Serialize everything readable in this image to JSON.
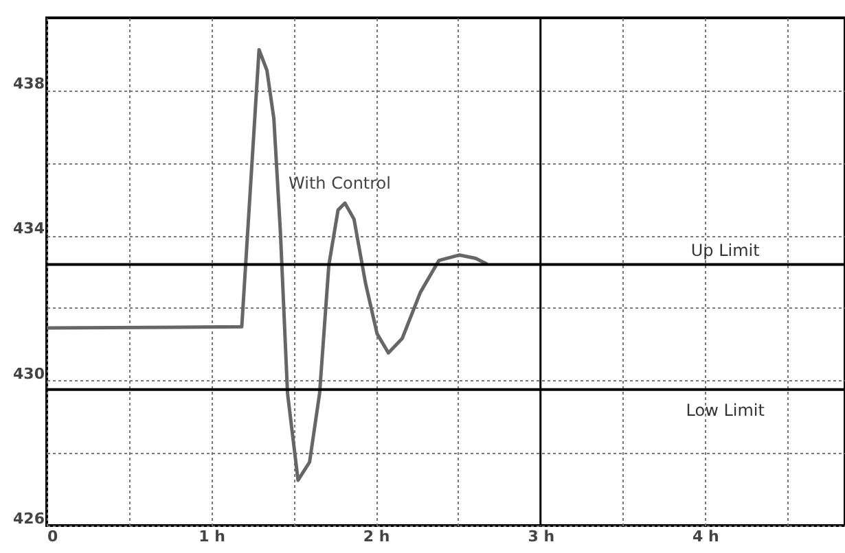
{
  "chart_data": {
    "type": "line",
    "x": [
      0,
      1.185,
      1.29,
      1.338,
      1.38,
      1.42,
      1.463,
      1.527,
      1.597,
      1.658,
      1.714,
      1.77,
      1.812,
      1.867,
      1.937,
      2.007,
      2.076,
      2.16,
      2.27,
      2.383,
      2.508,
      2.606,
      2.676
    ],
    "series": [
      {
        "color": "#666666",
        "values": [
          431.45,
          431.48,
          439.12,
          438.55,
          437.22,
          434.07,
          429.65,
          427.25,
          427.75,
          429.65,
          433.18,
          434.7,
          434.89,
          434.45,
          432.68,
          431.29,
          430.76,
          431.16,
          432.43,
          433.31,
          433.46,
          433.37,
          433.21
        ]
      }
    ],
    "xlim": [
      0,
      4.85
    ],
    "xticks": [
      0,
      {
        "value": 0.5,
        "label": null
      },
      {
        "value": 1,
        "label": "1 h"
      },
      {
        "value": 1.5,
        "label": null
      },
      {
        "value": 2,
        "label": "2 h"
      },
      {
        "value": 2.5,
        "label": null
      },
      {
        "value": 3,
        "label": "3 h"
      },
      {
        "value": 3.5,
        "label": null
      },
      {
        "value": 4,
        "label": "4 h"
      },
      {
        "value": 4.5,
        "label": null
      }
    ],
    "ylim": [
      426,
      440
    ],
    "yticks": [
      426,
      {
        "value": 428,
        "label": null
      },
      430,
      {
        "value": 432,
        "label": null
      },
      434,
      {
        "value": 436,
        "label": null
      },
      438
    ],
    "grid": true,
    "line_style": "solid",
    "marker": "none",
    "ref_lines": [
      {
        "axis": "y",
        "value": 433.2,
        "label": "Up Limit",
        "color": "#000000"
      },
      {
        "axis": "y",
        "value": 429.75,
        "label": "Low Limit",
        "color": "#000000"
      },
      {
        "axis": "x",
        "value": 3,
        "color": "#000000"
      }
    ],
    "annotations": [
      "With Control"
    ]
  }
}
